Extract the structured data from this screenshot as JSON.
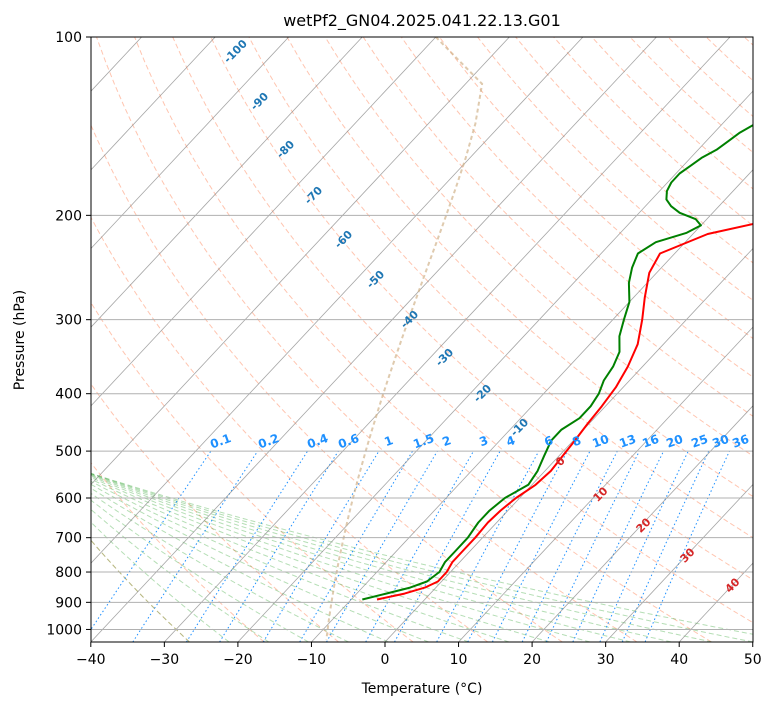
{
  "chart_data": {
    "type": "line",
    "subtype": "skew-t log-p diagram",
    "title": "wetPf2_GN04.2025.041.22.13.G01",
    "xlabel": "Temperature (°C)",
    "ylabel": "Pressure (hPa)",
    "xlim": [
      -40,
      50
    ],
    "ylim": [
      1050,
      100
    ],
    "y_scale": "log",
    "x_ticks": [
      -40,
      -30,
      -20,
      -10,
      0,
      10,
      20,
      30,
      40,
      50
    ],
    "y_ticks": [
      1000,
      900,
      800,
      700,
      600,
      500,
      400,
      300,
      200,
      100
    ],
    "grid": true,
    "skew_isotherm_step": 10,
    "colors": {
      "temperature": "#ff0000",
      "dewpoint": "#008000",
      "dry_adiabat": "#ff7f50",
      "moist_adiabat": "#2ca02c",
      "mixing_ratio": "#1e90ff",
      "isotherm": "#808080",
      "hgrid": "#b0b0b0",
      "lcl_curve": "#d2b48c",
      "dry_label": "#1f77b4",
      "moist_label": "#d62728"
    },
    "dry_adiabat_labels": [
      "-100",
      "-90",
      "-80",
      "-70",
      "-60",
      "-50",
      "-40",
      "-30",
      "-20",
      "-10"
    ],
    "moist_adiabat_labels": [
      "0",
      "10",
      "20",
      "30",
      "40"
    ],
    "mixing_ratio_labels": [
      "0.1",
      "0.2",
      "0.4",
      "0.6",
      "1",
      "1.5",
      "2",
      "3",
      "4",
      "6",
      "8",
      "10",
      "13",
      "16",
      "20",
      "25",
      "30",
      "36"
    ],
    "series": [
      {
        "name": "Temperature",
        "pressure": [
          890,
          870,
          850,
          830,
          800,
          770,
          740,
          700,
          660,
          630,
          600,
          570,
          540,
          510,
          480,
          450,
          420,
          390,
          360,
          330,
          300,
          275,
          250,
          232,
          215,
          205,
          195,
          185,
          175,
          165,
          155,
          145,
          135,
          125,
          115,
          105,
          100
        ],
        "temperature": [
          -6.5,
          -3.5,
          -1.5,
          -0.5,
          -0.5,
          -1.0,
          -1.0,
          -1.0,
          -1.2,
          -1.0,
          -0.5,
          0.5,
          0.8,
          0.5,
          0.2,
          -0.2,
          -0.5,
          -1.0,
          -2.0,
          -3.5,
          -6.0,
          -8.5,
          -11.0,
          -12.0,
          -8.0,
          -2.0,
          2.0,
          4.0,
          6.0,
          7.0,
          6.5,
          7.0,
          10.0,
          16.0,
          21.0,
          25.0,
          26.0
        ]
      },
      {
        "name": "Dewpoint",
        "pressure": [
          890,
          870,
          850,
          830,
          800,
          770,
          740,
          700,
          660,
          630,
          600,
          570,
          540,
          510,
          480,
          460,
          440,
          420,
          400,
          380,
          360,
          340,
          320,
          300,
          280,
          260,
          245,
          232,
          222,
          214,
          208,
          203,
          198,
          193,
          188,
          182,
          176,
          170,
          165,
          160,
          155,
          150,
          145,
          140,
          135,
          130,
          125,
          120,
          115,
          110,
          105,
          100
        ],
        "dewpoint": [
          -8.5,
          -6.0,
          -3.5,
          -2.0,
          -1.5,
          -2.0,
          -2.0,
          -2.0,
          -2.5,
          -2.5,
          -2.0,
          -0.5,
          -1.0,
          -2.0,
          -3.0,
          -3.0,
          -2.0,
          -2.0,
          -2.5,
          -3.5,
          -4.0,
          -5.0,
          -7.0,
          -8.5,
          -10.0,
          -12.5,
          -14.0,
          -15.0,
          -14.0,
          -11.0,
          -10.0,
          -11.5,
          -14.5,
          -16.5,
          -18.0,
          -19.0,
          -19.5,
          -19.5,
          -19.0,
          -18.5,
          -17.5,
          -17.0,
          -16.5,
          -15.5,
          -14.5,
          -13.5,
          -12.5,
          -11.0,
          -10.0,
          -9.0,
          -8.0,
          -7.5
        ]
      }
    ]
  }
}
